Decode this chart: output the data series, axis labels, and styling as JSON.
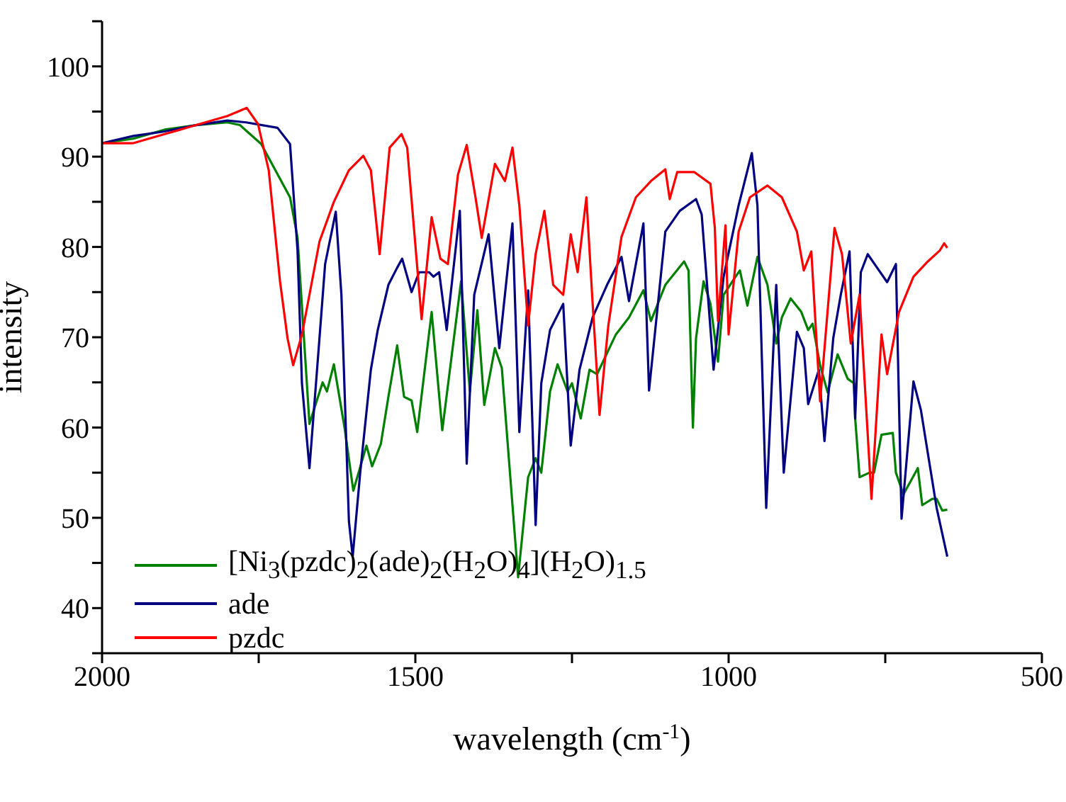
{
  "chart_data": {
    "type": "line",
    "xlabel": "wavelength (cm$^{-1}$)",
    "ylabel": "intensity",
    "xlim": [
      2000,
      500
    ],
    "xticks": [
      2000,
      {
        "value": 1750,
        "label": null
      },
      1500,
      {
        "value": 1250,
        "label": null
      },
      1000,
      {
        "value": 750,
        "label": null
      },
      500
    ],
    "ylim": [
      35,
      105
    ],
    "yticks": [
      {
        "value": 35,
        "label": null
      },
      40,
      {
        "value": 45,
        "label": null
      },
      50,
      {
        "value": 55,
        "label": null
      },
      60,
      {
        "value": 65,
        "label": null
      },
      70,
      {
        "value": 75,
        "label": null
      },
      80,
      {
        "value": 85,
        "label": null
      },
      90,
      {
        "value": 95,
        "label": null
      },
      100,
      {
        "value": 105,
        "label": null
      }
    ],
    "grid": false,
    "legend": "bottom left",
    "marker": "none",
    "line_style": "solid",
    "series": [
      {
        "name": "[Ni$_{3}$(pzdc)$_{2}$(ade)$_{2}$(H$_{2}$O)$_{4}$](H$_{2}$O)$_{1.5}$",
        "color": "#008000",
        "x": [
          2000,
          1950,
          1900,
          1850,
          1800,
          1780,
          1746,
          1700,
          1688,
          1669,
          1648,
          1641,
          1630,
          1613,
          1599,
          1578,
          1569,
          1555,
          1543,
          1529,
          1518,
          1506,
          1497,
          1474,
          1457,
          1427,
          1413,
          1401,
          1390,
          1373,
          1362,
          1336,
          1320,
          1308,
          1299,
          1285,
          1273,
          1257,
          1250,
          1236,
          1222,
          1210,
          1180,
          1159,
          1136,
          1124,
          1101,
          1071,
          1064,
          1057,
          1052,
          1040,
          1029,
          1017,
          1008,
          989,
          982,
          970,
          954,
          938,
          924,
          915,
          901,
          884,
          873,
          866,
          854,
          842,
          826,
          810,
          800,
          798,
          791,
          775,
          768,
          756,
          738,
          733,
          721,
          698,
          691,
          675,
          668,
          659,
          651
        ],
        "values": [
          91.5,
          92,
          93,
          93.5,
          93.8,
          93.5,
          91.4,
          85.5,
          81,
          60.4,
          65,
          64,
          67,
          60,
          53,
          58,
          55.7,
          58.2,
          63.4,
          69.1,
          63.4,
          63,
          59.5,
          72.8,
          59.7,
          76.2,
          64,
          73,
          62.5,
          68.8,
          66.6,
          43.4,
          54.5,
          56.6,
          55,
          64,
          67,
          64,
          64.9,
          61,
          66.4,
          65.9,
          70.3,
          72.2,
          75.2,
          71.8,
          75.8,
          78.4,
          77.4,
          60,
          69.9,
          76.2,
          73.7,
          67.3,
          74.7,
          76.7,
          77.4,
          73.5,
          78.9,
          75.8,
          69.3,
          72.2,
          74.3,
          72.8,
          70.8,
          71.5,
          66.9,
          63.9,
          68.1,
          65.4,
          64.9,
          61,
          54.5,
          55,
          55,
          59.2,
          59.4,
          55,
          52.6,
          55.5,
          51.4,
          52.1,
          52.1,
          50.8,
          50.9
        ]
      },
      {
        "name": "ade",
        "color": "#000080",
        "x": [
          2000,
          1950,
          1900,
          1850,
          1800,
          1770,
          1720,
          1700,
          1688,
          1681,
          1669,
          1653,
          1644,
          1627,
          1618,
          1606,
          1600,
          1588,
          1571,
          1560,
          1543,
          1529,
          1521,
          1506,
          1494,
          1478,
          1471,
          1462,
          1450,
          1429,
          1418,
          1406,
          1383,
          1366,
          1345,
          1334,
          1320,
          1308,
          1299,
          1285,
          1264,
          1252,
          1238,
          1217,
          1194,
          1171,
          1159,
          1136,
          1127,
          1101,
          1078,
          1052,
          1043,
          1024,
          1008,
          984,
          963,
          954,
          940,
          924,
          912,
          891,
          880,
          873,
          856,
          847,
          833,
          821,
          807,
          798,
          789,
          778,
          763,
          747,
          733,
          724,
          705,
          693,
          684,
          668,
          651
        ],
        "values": [
          91.5,
          92.3,
          92.8,
          93.5,
          94,
          93.8,
          93.2,
          91.4,
          79.6,
          64.9,
          55.5,
          69.9,
          78.1,
          83.9,
          74.7,
          49.6,
          45.7,
          55,
          66.4,
          70.8,
          75.8,
          77.7,
          78.7,
          75,
          77.2,
          77.2,
          76.7,
          77.2,
          70.8,
          84,
          56,
          74.7,
          81.4,
          68.8,
          82.6,
          59.5,
          75.2,
          49.2,
          64.9,
          70.8,
          73.7,
          58,
          66.4,
          72.2,
          75.8,
          78.9,
          74,
          82.6,
          64.1,
          81.7,
          84,
          85.3,
          83.6,
          66.4,
          76.7,
          84.6,
          90.4,
          84.6,
          51.1,
          75.8,
          55,
          70.6,
          68.8,
          62.6,
          66.4,
          58.5,
          69.9,
          74.7,
          79.5,
          61,
          77.2,
          79.2,
          77.7,
          76.1,
          78.1,
          49.9,
          65.1,
          61.9,
          58,
          51.1,
          45.7
        ]
      },
      {
        "name": "pzdc",
        "color": "#ff0000",
        "x": [
          2000,
          1950,
          1900,
          1850,
          1800,
          1769,
          1751,
          1734,
          1716,
          1704,
          1695,
          1681,
          1653,
          1630,
          1606,
          1583,
          1571,
          1557,
          1541,
          1522,
          1513,
          1490,
          1474,
          1460,
          1448,
          1432,
          1418,
          1404,
          1394,
          1373,
          1357,
          1345,
          1334,
          1320,
          1308,
          1294,
          1280,
          1264,
          1252,
          1241,
          1227,
          1217,
          1206,
          1192,
          1171,
          1148,
          1124,
          1101,
          1094,
          1082,
          1055,
          1029,
          1022,
          1017,
          1005,
          1000,
          984,
          966,
          938,
          915,
          891,
          880,
          868,
          854,
          831,
          819,
          805,
          791,
          772,
          756,
          747,
          728,
          705,
          682,
          663,
          656,
          651
        ],
        "values": [
          91.5,
          91.5,
          92.5,
          93.5,
          94.5,
          95.4,
          93.6,
          88.5,
          76.2,
          69.9,
          66.9,
          70.3,
          80.6,
          85,
          88.5,
          90.1,
          88.5,
          79.2,
          91,
          92.5,
          91,
          72,
          83.3,
          78.7,
          78.1,
          88,
          91.3,
          85.5,
          81,
          89.2,
          87.3,
          91,
          84.6,
          71.3,
          79.2,
          84,
          75.8,
          74.7,
          81.4,
          77.2,
          85.5,
          73.7,
          61.4,
          71.3,
          81.1,
          85.5,
          87.3,
          88.6,
          85.3,
          88.3,
          88.3,
          87,
          82.1,
          71.8,
          82.4,
          70.3,
          81.7,
          85.5,
          86.8,
          85.5,
          81.7,
          77.4,
          79.5,
          62.9,
          82.1,
          79.2,
          69.3,
          74.7,
          52.1,
          70.3,
          65.9,
          72.8,
          76.7,
          78.4,
          79.6,
          80.4,
          79.9
        ]
      }
    ]
  }
}
